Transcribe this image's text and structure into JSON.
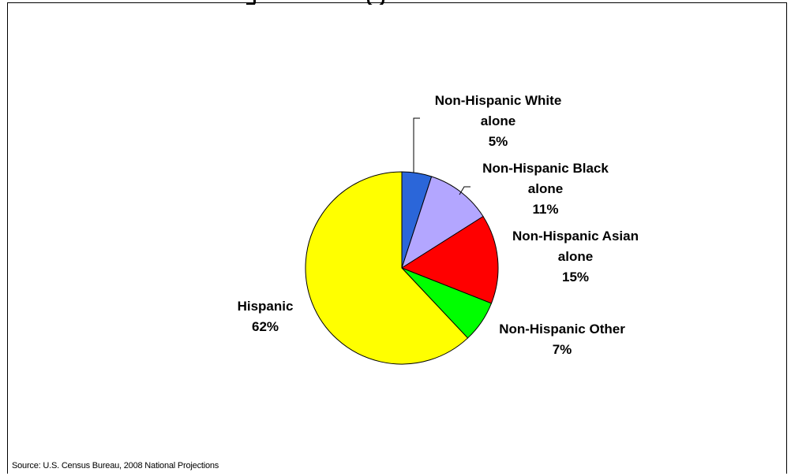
{
  "chart_data": {
    "type": "pie",
    "start_angle_deg": 0,
    "direction": "clockwise",
    "slices": [
      {
        "name": "Non-Hispanic White alone",
        "label_lines": [
          "Non-Hispanic White",
          "alone",
          "5%"
        ],
        "value": 5,
        "color": "#2b66d9"
      },
      {
        "name": "Non-Hispanic Black alone",
        "label_lines": [
          "Non-Hispanic Black",
          "alone",
          "11%"
        ],
        "value": 11,
        "color": "#b3a6ff"
      },
      {
        "name": "Non-Hispanic Asian alone",
        "label_lines": [
          "Non-Hispanic Asian",
          "alone",
          "15%"
        ],
        "value": 15,
        "color": "#ff0000"
      },
      {
        "name": "Non-Hispanic Other",
        "label_lines": [
          "Non-Hispanic Other",
          "7%"
        ],
        "value": 7,
        "color": "#00ff00"
      },
      {
        "name": "Hispanic",
        "label_lines": [
          "Hispanic",
          "62%"
        ],
        "value": 62,
        "color": "#ffff00"
      }
    ],
    "outline_color": "#000000"
  },
  "source_note": "Source: U.S. Census Bureau, 2008 National Projections"
}
